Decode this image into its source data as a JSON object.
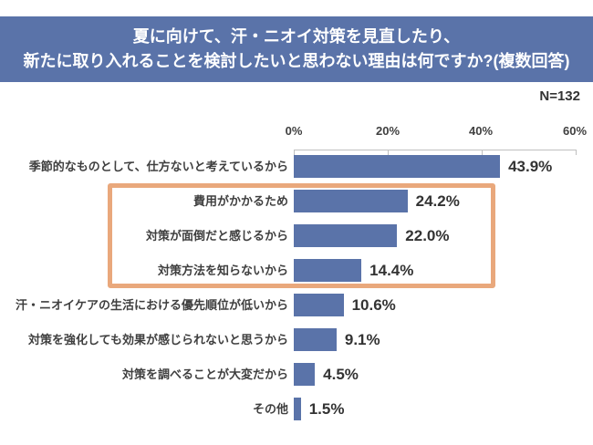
{
  "header": {
    "title_line1": "夏に向けて、汗・ニオイ対策を見直したり、",
    "title_line2": "新たに取り入れることを検討したいと思わない理由は何ですか?(複数回答)"
  },
  "sample": {
    "label": "N=132"
  },
  "colors": {
    "banner_bg": "#5a73a9",
    "banner_text": "#ffffff",
    "bar": "#5a73a9",
    "highlight_border": "#e9a87c",
    "axis": "#bfbfbf",
    "text": "#333333"
  },
  "chart_data": {
    "type": "bar",
    "orientation": "horizontal",
    "title": "夏に向けて、汗・ニオイ対策を見直したり、新たに取り入れることを検討したいと思わない理由は何ですか?(複数回答)",
    "sample_size": 132,
    "categories": [
      "季節的なものとして、仕方ないと考えているから",
      "費用がかかるため",
      "対策が面倒だと感じるから",
      "対策方法を知らないから",
      "汗・ニオイケアの生活における優先順位が低いから",
      "対策を強化しても効果が感じられないと思うから",
      "対策を調べることが大変だから",
      "その他"
    ],
    "values": [
      43.9,
      24.2,
      22.0,
      14.4,
      10.6,
      9.1,
      4.5,
      1.5
    ],
    "value_labels": [
      "43.9%",
      "24.2%",
      "22.0%",
      "14.4%",
      "10.6%",
      "9.1%",
      "4.5%",
      "1.5%"
    ],
    "xlim": [
      0,
      60
    ],
    "x_ticks": [
      0,
      20,
      40,
      60
    ],
    "x_tick_labels": [
      "0%",
      "20%",
      "40%",
      "60%"
    ],
    "grid": false,
    "legend": false,
    "axis_position": "top",
    "highlight": {
      "rows": [
        1,
        2,
        3
      ],
      "note": "orange box around cost / hassle / lack-of-knowledge reasons"
    }
  }
}
